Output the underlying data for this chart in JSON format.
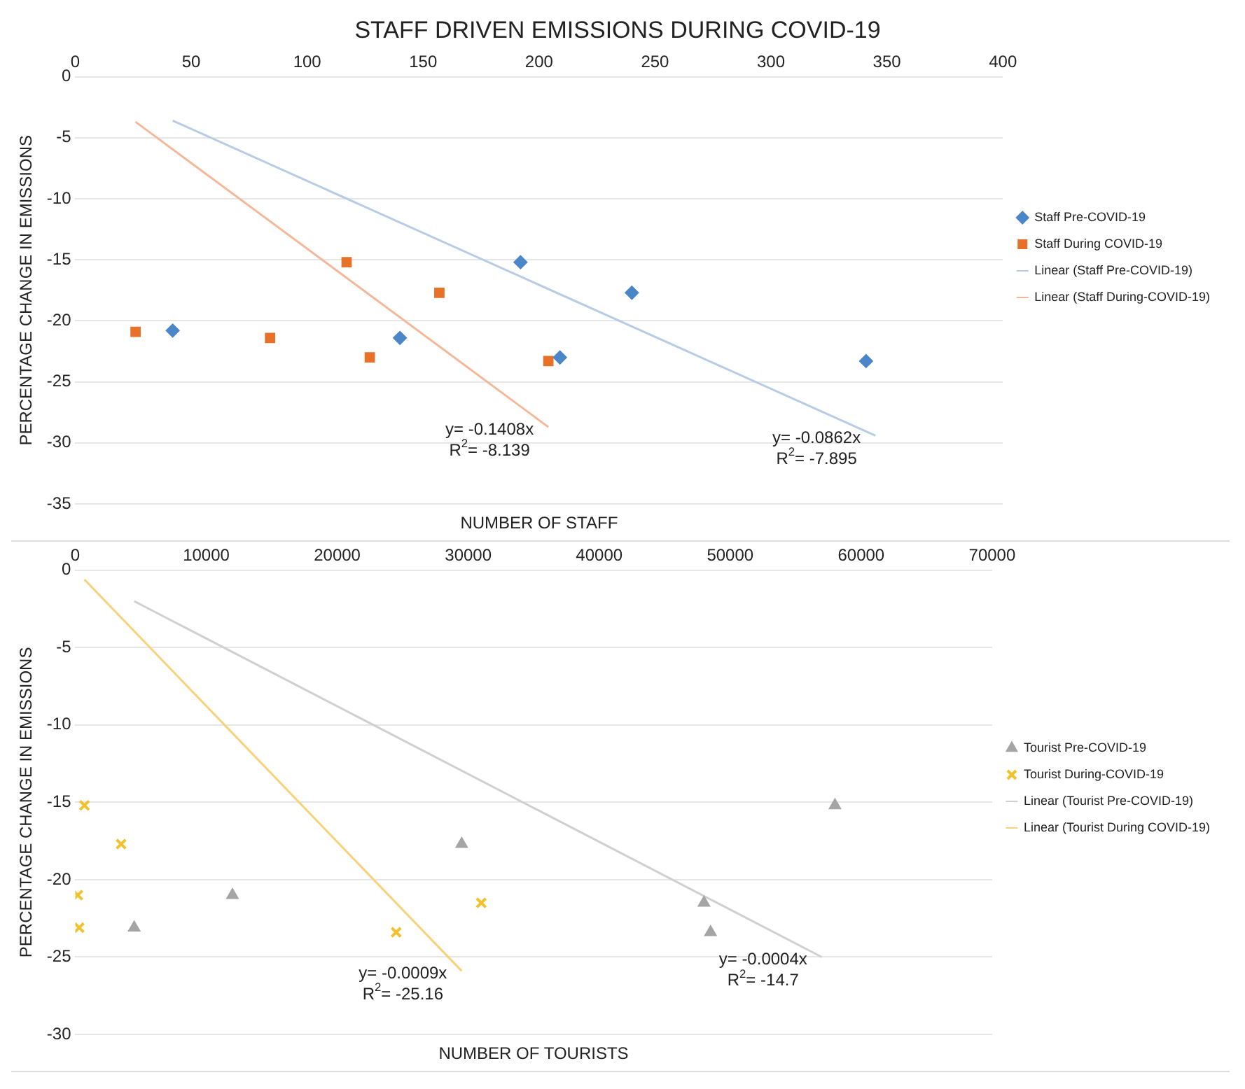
{
  "chart_data": [
    {
      "type": "scatter",
      "title": "STAFF DRIVEN EMISSIONS DURING COVID-19",
      "xlabel": "NUMBER OF STAFF",
      "ylabel": "PERCENTAGE CHANGE IN EMISSIONS",
      "xlim": [
        0,
        400
      ],
      "xticks": [
        0,
        50,
        100,
        150,
        200,
        250,
        300,
        350,
        400
      ],
      "ylim": [
        -35,
        0
      ],
      "yticks": [
        0,
        -5,
        -10,
        -15,
        -20,
        -25,
        -30,
        -35
      ],
      "grid": "y",
      "legend": "right",
      "series": [
        {
          "name": "Staff Pre-COVID-19",
          "color": "#4a86c8",
          "marker": "diamond",
          "x": [
            42,
            140,
            192,
            209,
            240,
            341
          ],
          "values": [
            -20.8,
            -21.4,
            -15.2,
            -23,
            -17.7,
            -23.3
          ]
        },
        {
          "name": "Staff During COVID-19",
          "color": "#e8712a",
          "marker": "square",
          "x": [
            26,
            84,
            117,
            127,
            157,
            204
          ],
          "values": [
            -20.9,
            -21.4,
            -15.2,
            -23,
            -17.7,
            -23.3
          ]
        },
        {
          "name": "Linear (Staff Pre-COVID-19)",
          "type": "line",
          "color": "#b8cce4",
          "marker": "none",
          "x": [
            42,
            345
          ],
          "values": [
            -3.6,
            -29.4
          ]
        },
        {
          "name": "Linear (Staff During-COVID-19)",
          "type": "line",
          "color": "#f4b899",
          "marker": "none",
          "x": [
            26,
            204
          ],
          "values": [
            -3.7,
            -28.7
          ]
        }
      ],
      "annotations": [
        "y= -0.0862x",
        "R$^{2}$= -7.895",
        "y= -0.1408x",
        "R$^{2}$= -8.139"
      ]
    },
    {
      "type": "scatter",
      "xlabel": "NUMBER OF TOURISTS",
      "ylabel": "PERCENTAGE CHANGE IN EMISSIONS",
      "xlim": [
        0,
        70000
      ],
      "xticks": [
        0,
        10000,
        20000,
        30000,
        40000,
        50000,
        60000,
        70000
      ],
      "ylim": [
        -30,
        0
      ],
      "yticks": [
        0,
        -5,
        -10,
        -15,
        -20,
        -25,
        -30
      ],
      "grid": "y",
      "legend": "right",
      "series": [
        {
          "name": "Tourist Pre-COVID-19",
          "color": "#a5a5a5",
          "marker": "triangle",
          "x": [
            4500,
            12000,
            29500,
            48000,
            48500,
            58000
          ],
          "values": [
            -23.1,
            -21,
            -17.7,
            -21.5,
            -23.4,
            -15.2
          ]
        },
        {
          "name": "Tourist During-COVID-19",
          "color": "#f2c12e",
          "marker": "cross",
          "x": [
            700,
            3500,
            200,
            300,
            24500,
            31000
          ],
          "values": [
            -15.2,
            -17.7,
            -21,
            -23.1,
            -23.4,
            -21.5
          ]
        },
        {
          "name": "Linear (Tourist Pre-COVID-19)",
          "type": "line",
          "color": "#d0d0d0",
          "marker": "none",
          "x": [
            4500,
            57000
          ],
          "values": [
            -2,
            -25
          ]
        },
        {
          "name": "Linear (Tourist During COVID-19)",
          "type": "line",
          "color": "#f8d27a",
          "marker": "none",
          "x": [
            700,
            29500
          ],
          "values": [
            -0.6,
            -25.9
          ]
        }
      ],
      "annotations": [
        "y= -0.0004x",
        "R$^{2}$= -14.7",
        "y= -0.0009x",
        "R$^{2}$= -25.16"
      ]
    }
  ]
}
